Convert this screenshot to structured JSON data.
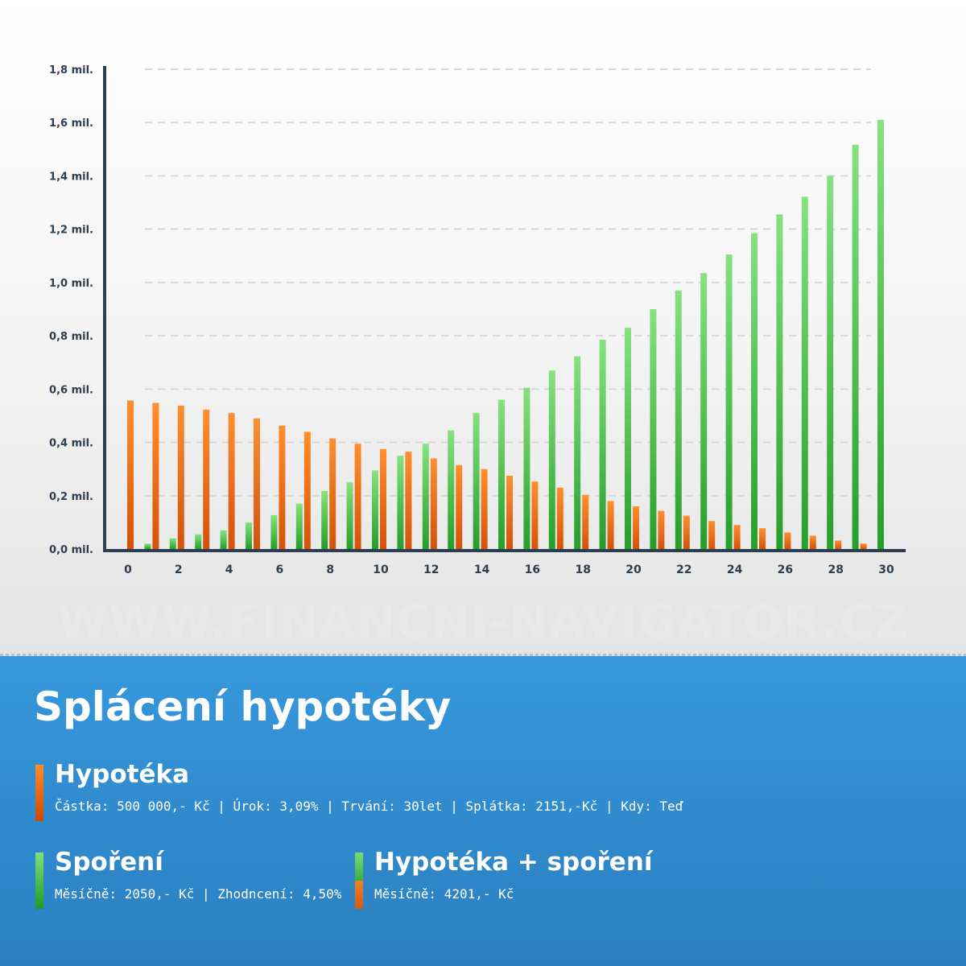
{
  "chart_data": {
    "type": "bar",
    "x": [
      0,
      1,
      2,
      3,
      4,
      5,
      6,
      7,
      8,
      9,
      10,
      11,
      12,
      13,
      14,
      15,
      16,
      17,
      18,
      19,
      20,
      21,
      22,
      23,
      24,
      25,
      26,
      27,
      28,
      29,
      30
    ],
    "x_tick_labels": [
      "0",
      "2",
      "4",
      "6",
      "8",
      "10",
      "12",
      "14",
      "16",
      "18",
      "20",
      "22",
      "24",
      "26",
      "28",
      "30"
    ],
    "y_tick_labels": [
      "0,0 mil.",
      "0,2 mil.",
      "0,4 mil.",
      "0,6 mil.",
      "0,8 mil.",
      "1,0 mil.",
      "1,2 mil.",
      "1,4 mil.",
      "1,6 mil.",
      "1,8 mil."
    ],
    "ylim": [
      0,
      1800000
    ],
    "grid": "horizontal dashed",
    "series": [
      {
        "name": "Hypotéka",
        "color": "#e8731c",
        "x": [
          0,
          1,
          2,
          3,
          4,
          5,
          6,
          7,
          8,
          9,
          10,
          11,
          12,
          13,
          14,
          15,
          16,
          17,
          18,
          19,
          20,
          21,
          22,
          23,
          24,
          25,
          26,
          27,
          28,
          29
        ],
        "values": [
          557000,
          548000,
          538000,
          523000,
          510000,
          490000,
          463000,
          440000,
          415000,
          395000,
          375000,
          365000,
          340000,
          315000,
          300000,
          275000,
          253000,
          230000,
          203000,
          180000,
          160000,
          143000,
          125000,
          105000,
          90000,
          78000,
          62000,
          50000,
          32000,
          20000
        ]
      },
      {
        "name": "Spoření",
        "color": "#4cbd45",
        "x": [
          1,
          2,
          3,
          4,
          5,
          6,
          7,
          8,
          9,
          10,
          11,
          12,
          13,
          14,
          15,
          16,
          17,
          18,
          19,
          20,
          21,
          22,
          23,
          24,
          25,
          26,
          27,
          28,
          29,
          30
        ],
        "values": [
          20000,
          40000,
          55000,
          70000,
          100000,
          127000,
          170000,
          218000,
          250000,
          295000,
          350000,
          395000,
          445000,
          510000,
          560000,
          605000,
          670000,
          723000,
          785000,
          830000,
          900000,
          970000,
          1035000,
          1105000,
          1185000,
          1255000,
          1322000,
          1400000,
          1517000,
          1610000
        ]
      }
    ]
  },
  "watermark": "WWW.FINANCNI-NAVIGATOR.CZ",
  "panel": {
    "title": "Splácení hypotéky",
    "mortgage": {
      "title": "Hypotéka",
      "desc": "Částka: 500 000,- Kč | Úrok: 3,09% | Trvání: 30let | Splátka: 2151,-Kč | Kdy: Teď",
      "color": "#e8731c"
    },
    "savings": {
      "title": "Spoření",
      "desc": "Měsíčně: 2050,- Kč | Zhodncení: 4,50%",
      "color": "#4cbd45"
    },
    "combined": {
      "title": "Hypotéka + spoření",
      "desc": "Měsíčně: 4201,- Kč"
    }
  }
}
